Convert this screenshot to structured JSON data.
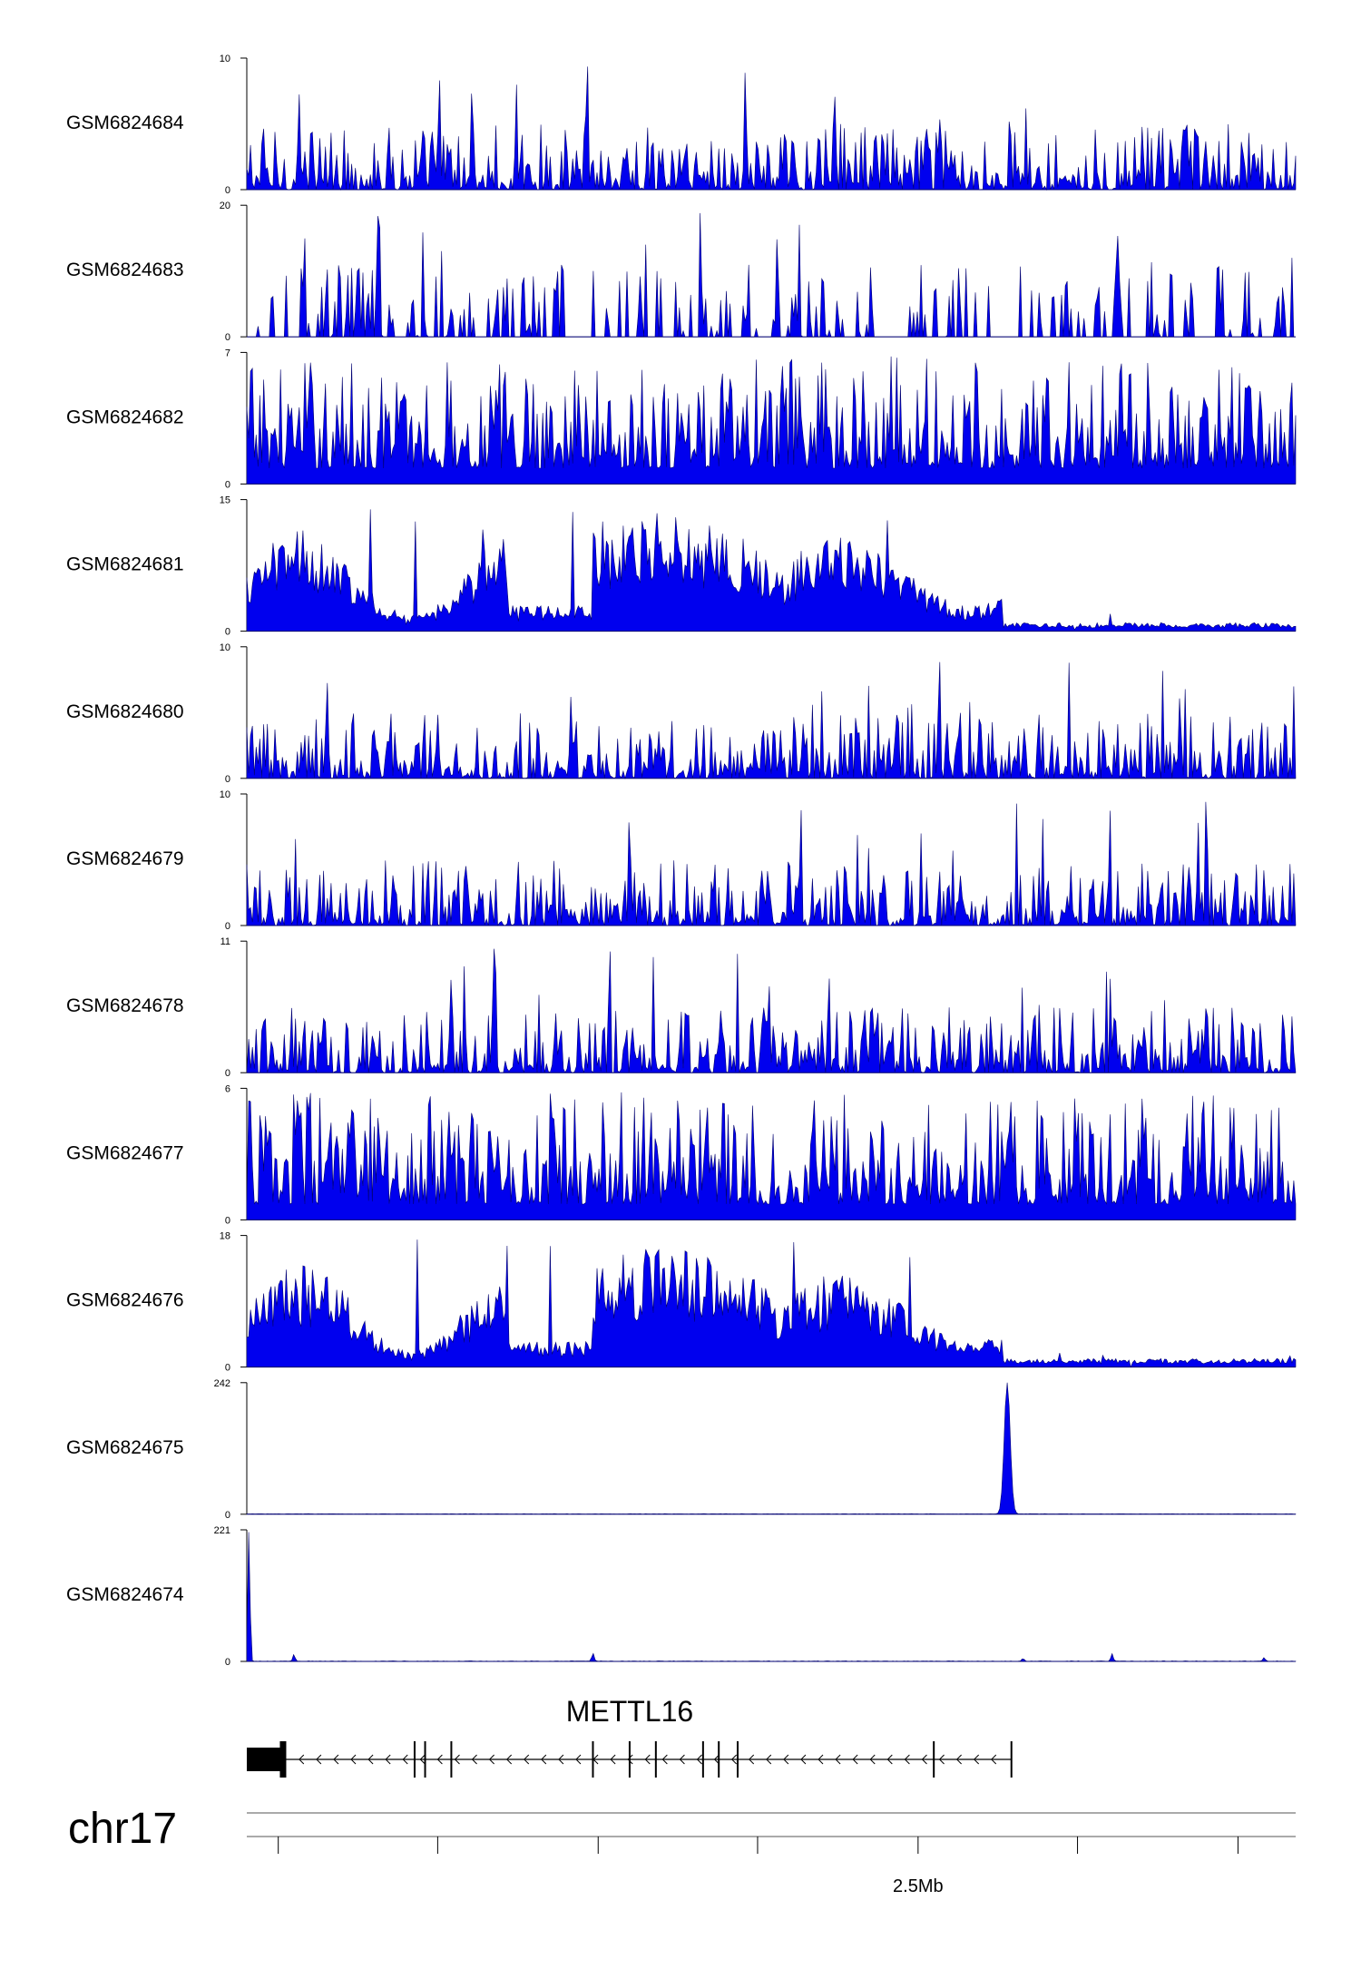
{
  "chart_data": {
    "type": "area",
    "title": "",
    "chromosome": "chr17",
    "series_color": "#0000ee",
    "tracks": [
      {
        "name": "GSM6824684",
        "ymax": 10,
        "ymin": 0,
        "profile": "noisy"
      },
      {
        "name": "GSM6824683",
        "ymax": 20,
        "ymin": 0,
        "profile": "sparse"
      },
      {
        "name": "GSM6824682",
        "ymax": 7,
        "ymin": 0,
        "profile": "dense"
      },
      {
        "name": "GSM6824681",
        "ymax": 15,
        "ymin": 0,
        "profile": "broad_left"
      },
      {
        "name": "GSM6824680",
        "ymax": 10,
        "ymin": 0,
        "profile": "noisy"
      },
      {
        "name": "GSM6824679",
        "ymax": 10,
        "ymin": 0,
        "profile": "noisy"
      },
      {
        "name": "GSM6824678",
        "ymax": 11,
        "ymin": 0,
        "profile": "noisy"
      },
      {
        "name": "GSM6824677",
        "ymax": 6,
        "ymin": 0,
        "profile": "dense"
      },
      {
        "name": "GSM6824676",
        "ymax": 18,
        "ymin": 0,
        "profile": "broad_left"
      },
      {
        "name": "GSM6824675",
        "ymax": 242,
        "ymin": 0,
        "profile": "single_peak",
        "peaks": [
          {
            "pos": 0.725,
            "value": 242
          }
        ]
      },
      {
        "name": "GSM6824674",
        "ymax": 221,
        "ymin": 0,
        "profile": "edge_peak",
        "peaks": [
          {
            "pos": 0.002,
            "value": 221
          },
          {
            "pos": 0.045,
            "value": 12
          },
          {
            "pos": 0.33,
            "value": 14
          },
          {
            "pos": 0.74,
            "value": 5
          },
          {
            "pos": 0.825,
            "value": 13
          },
          {
            "pos": 0.97,
            "value": 6
          }
        ]
      }
    ],
    "gene": {
      "name": "METTL16",
      "strand": "-",
      "exon_positions": [
        0.16,
        0.17,
        0.195,
        0.33,
        0.365,
        0.39,
        0.435,
        0.45,
        0.468,
        0.655,
        0.729
      ],
      "utr_start": 0.0,
      "utr_end": 0.035,
      "gene_end": 0.729
    },
    "x_axis": {
      "ticks": [
        0.03,
        0.182,
        0.335,
        0.487,
        0.64,
        0.792,
        0.945
      ],
      "tick_labels": [
        "",
        "",
        "",
        "",
        "2.5Mb",
        "",
        ""
      ],
      "label": "2.5Mb"
    }
  }
}
